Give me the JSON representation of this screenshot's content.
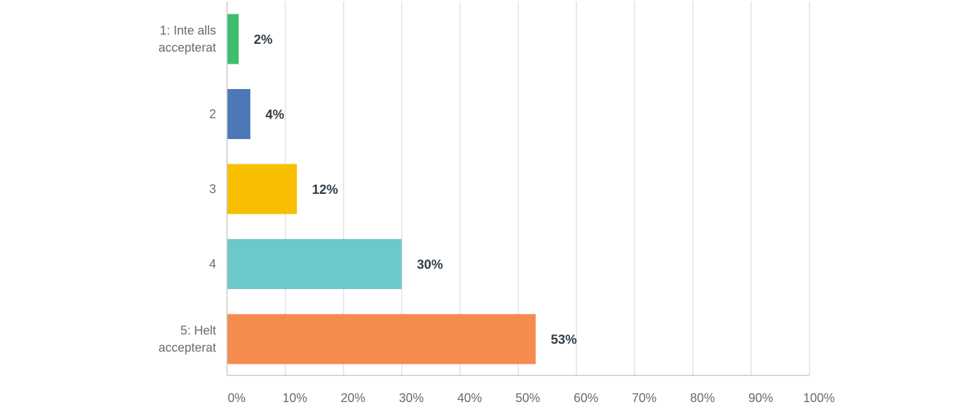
{
  "chart_data": {
    "type": "bar",
    "orientation": "horizontal",
    "categories": [
      [
        "1: Inte alls",
        "accepterat"
      ],
      [
        "2"
      ],
      [
        "3"
      ],
      [
        "4"
      ],
      [
        "5: Helt",
        "accepterat"
      ]
    ],
    "values": [
      2,
      4,
      12,
      30,
      53
    ],
    "value_labels": [
      "2%",
      "4%",
      "12%",
      "30%",
      "53%"
    ],
    "colors": [
      "#3ebd6c",
      "#4c78b5",
      "#f8bf00",
      "#6dc8cb",
      "#f68b4f"
    ],
    "xlim": [
      0,
      100
    ],
    "x_ticks": [
      0,
      10,
      20,
      30,
      40,
      50,
      60,
      70,
      80,
      90,
      100
    ],
    "x_tick_labels": [
      "0%",
      "10%",
      "20%",
      "30%",
      "40%",
      "50%",
      "60%",
      "70%",
      "80%",
      "90%",
      "100%"
    ],
    "grid": true,
    "title": "",
    "xlabel": "",
    "ylabel": ""
  }
}
